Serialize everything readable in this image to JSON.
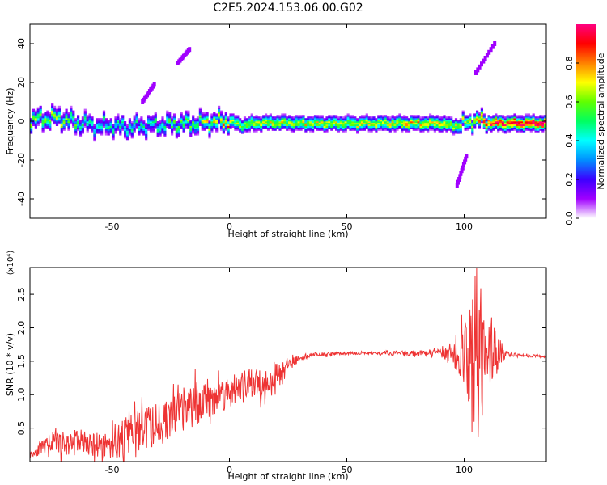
{
  "title": "C2E5.2024.153.06.00.G02",
  "chart_data": [
    {
      "type": "heatmap",
      "xlabel": "Height of straight line (km)",
      "ylabel": "Frequency (Hz)",
      "xlim": [
        -85,
        135
      ],
      "ylim": [
        -50,
        50
      ],
      "xticks": [
        -50,
        0,
        50,
        100
      ],
      "yticks": [
        -40,
        -20,
        0,
        20,
        40
      ],
      "colorbar": {
        "label": "Normalized spectral amplitude",
        "range": [
          0.0,
          1.0
        ],
        "ticks": [
          "0.0",
          "0.2",
          "0.4",
          "0.6",
          "0.8"
        ],
        "colors": [
          "#ffffff",
          "#a000ff",
          "#3c00ff",
          "#0090ff",
          "#00ffff",
          "#00ff60",
          "#60ff00",
          "#ffff00",
          "#ff8000",
          "#ff0000",
          "#ff0080"
        ]
      },
      "ridge": [
        [
          -85,
          0.0,
          0.45
        ],
        [
          -80,
          1.0,
          0.5
        ],
        [
          -75,
          1.5,
          0.5
        ],
        [
          -70,
          0.8,
          0.45
        ],
        [
          -65,
          -1.0,
          0.4
        ],
        [
          -60,
          -2.0,
          0.35
        ],
        [
          -55,
          -3.0,
          0.35
        ],
        [
          -50,
          -2.5,
          0.35
        ],
        [
          -45,
          -3.5,
          0.35
        ],
        [
          -40,
          -3.0,
          0.35
        ],
        [
          -35,
          -2.5,
          0.35
        ],
        [
          -30,
          -2.5,
          0.35
        ],
        [
          -25,
          -2.0,
          0.4
        ],
        [
          -20,
          -1.8,
          0.45
        ],
        [
          -15,
          -1.5,
          0.45
        ],
        [
          -10,
          -1.0,
          0.5
        ],
        [
          -5,
          -0.5,
          0.55
        ],
        [
          0,
          0.0,
          0.6
        ],
        [
          5,
          -2.5,
          0.6
        ],
        [
          10,
          -1.5,
          0.65
        ],
        [
          15,
          -1.2,
          0.65
        ],
        [
          20,
          -1.0,
          0.65
        ],
        [
          30,
          -1.5,
          0.65
        ],
        [
          40,
          -1.5,
          0.65
        ],
        [
          50,
          -1.5,
          0.65
        ],
        [
          60,
          -1.5,
          0.65
        ],
        [
          70,
          -1.5,
          0.65
        ],
        [
          80,
          -1.5,
          0.7
        ],
        [
          90,
          -1.5,
          0.7
        ],
        [
          95,
          -2.5,
          0.65
        ],
        [
          100,
          -2.0,
          0.6
        ],
        [
          105,
          0.5,
          0.7
        ],
        [
          110,
          -1.0,
          0.85
        ],
        [
          115,
          -1.5,
          0.95
        ],
        [
          120,
          -1.5,
          1.0
        ],
        [
          125,
          -1.5,
          1.0
        ],
        [
          130,
          -1.5,
          1.0
        ],
        [
          135,
          -1.5,
          1.0
        ]
      ],
      "streaks": [
        {
          "from": [
            105,
            25
          ],
          "to": [
            113,
            40
          ]
        },
        {
          "from": [
            97,
            -33
          ],
          "to": [
            101,
            -18
          ]
        },
        {
          "from": [
            -37,
            10
          ],
          "to": [
            -32,
            19
          ]
        },
        {
          "from": [
            -22,
            30
          ],
          "to": [
            -17,
            37
          ]
        }
      ]
    },
    {
      "type": "line",
      "xlabel": "Height of straight line (km)",
      "ylabel": "SNR (10 * v/v)",
      "yscale_label": "(x10⁴)",
      "xlim": [
        -85,
        135
      ],
      "ylim": [
        0.0,
        2.9
      ],
      "xticks": [
        -50,
        0,
        50,
        100
      ],
      "yticks": [
        0.5,
        1.0,
        1.5,
        2.0,
        2.5
      ],
      "series": [
        {
          "color": "#ee3333",
          "x": [
            -85,
            -80,
            -75,
            -70,
            -65,
            -60,
            -55,
            -50,
            -45,
            -40,
            -35,
            -30,
            -25,
            -20,
            -15,
            -10,
            -5,
            0,
            5,
            10,
            15,
            20,
            25,
            30,
            35,
            40,
            50,
            60,
            70,
            80,
            90,
            95,
            100,
            103,
            105,
            107,
            109,
            112,
            115,
            118,
            120,
            125,
            130,
            135
          ],
          "values": [
            0.1,
            0.2,
            0.3,
            0.25,
            0.3,
            0.25,
            0.25,
            0.25,
            0.35,
            0.45,
            0.5,
            0.55,
            0.65,
            0.75,
            0.85,
            0.95,
            1.0,
            1.05,
            1.1,
            1.15,
            1.2,
            1.3,
            1.45,
            1.55,
            1.6,
            1.6,
            1.62,
            1.62,
            1.62,
            1.62,
            1.62,
            1.6,
            1.6,
            1.6,
            1.6,
            1.6,
            1.62,
            1.65,
            1.65,
            1.6,
            1.6,
            1.58,
            1.58,
            1.57
          ],
          "noise": [
            0.05,
            0.1,
            0.15,
            0.2,
            0.2,
            0.15,
            0.2,
            0.25,
            0.3,
            0.3,
            0.35,
            0.35,
            0.35,
            0.35,
            0.35,
            0.3,
            0.3,
            0.25,
            0.25,
            0.25,
            0.25,
            0.2,
            0.1,
            0.05,
            0.03,
            0.03,
            0.02,
            0.02,
            0.03,
            0.04,
            0.05,
            0.2,
            0.5,
            0.9,
            1.3,
            1.3,
            0.8,
            0.4,
            0.25,
            0.05,
            0.03,
            0.02,
            0.02,
            0.02
          ]
        }
      ]
    }
  ]
}
